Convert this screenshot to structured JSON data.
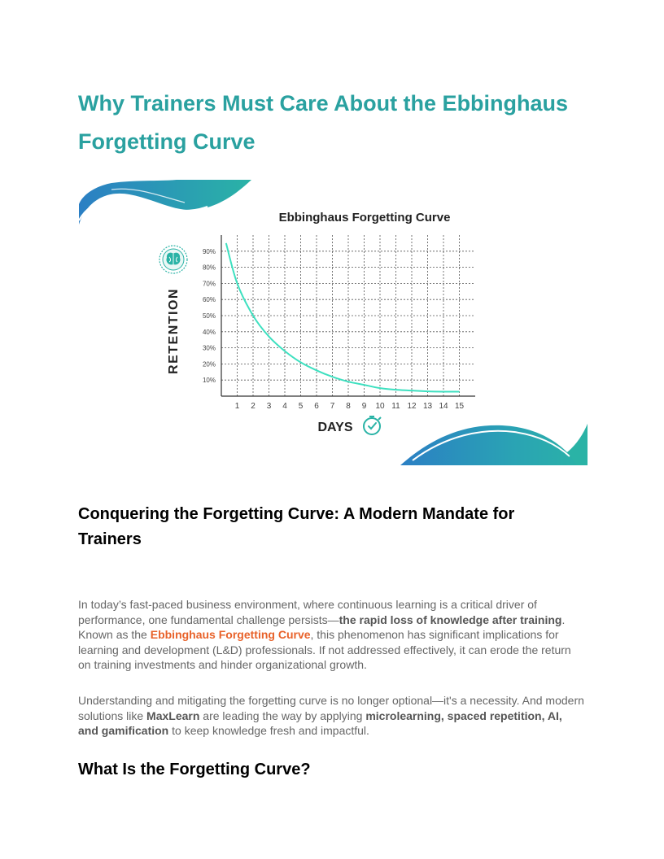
{
  "document": {
    "title_lines": [
      "Why Trainers Must Care About the Ebbinghaus",
      "Forgetting Curve"
    ],
    "colors": {
      "title": "#2aa1a0",
      "highlight": "#e8622a",
      "curve": "#3ee0c0",
      "swoosh_blue": "#2b7fc4",
      "swoosh_teal": "#2ab3a6"
    }
  },
  "figure": {
    "brain_icon": "brain-icon",
    "clock_icon": "clock-check-icon"
  },
  "chart_data": {
    "type": "line",
    "title": "Ebbinghaus Forgetting Curve",
    "xlabel": "DAYS",
    "ylabel": "RETENTION",
    "x_ticks": [
      "1",
      "2",
      "3",
      "4",
      "5",
      "6",
      "7",
      "8",
      "9",
      "10",
      "11",
      "12",
      "13",
      "14",
      "15"
    ],
    "y_ticks": [
      "10%",
      "20%",
      "30%",
      "40%",
      "50%",
      "60%",
      "70%",
      "80%",
      "90%"
    ],
    "xlim": [
      0,
      16
    ],
    "ylim": [
      0,
      100
    ],
    "grid": true,
    "series": [
      {
        "x": [
          0.3,
          1,
          2,
          3,
          4,
          5,
          6,
          7,
          8,
          9,
          10,
          11,
          12,
          13,
          14,
          15
        ],
        "y": [
          95,
          70,
          50,
          37,
          28,
          21,
          16,
          12,
          9,
          7,
          5,
          4,
          3.5,
          3,
          2.8,
          2.8
        ]
      }
    ]
  },
  "section": {
    "heading_lines": [
      "Conquering the Forgetting Curve: A Modern Mandate for",
      "Trainers"
    ]
  },
  "p1": {
    "l1": "In today’s fast-paced business environment, where continuous learning is a critical driver of",
    "l2_a": "performance, one fundamental challenge persists—",
    "l2_b": "the rapid loss of knowledge after training",
    "l2_c": ".",
    "l3_a": "Known as the ",
    "l3_b": "Ebbinghaus Forgetting Curve",
    "l3_c": ", this phenomenon has significant implications for",
    "l4": "learning and development (L&D) professionals. If not addressed effectively, it can erode the return",
    "l5": "on training investments and hinder organizational growth."
  },
  "p2": {
    "l1": "Understanding and mitigating the forgetting curve is no longer optional—it's a necessity. And modern",
    "l2_a": "solutions like ",
    "l2_b": "MaxLearn",
    "l2_c": " are leading the way by applying ",
    "l2_d": "microlearning, spaced repetition, AI,",
    "l3_a": "and gamification",
    "l3_b": " to keep knowledge fresh and impactful."
  },
  "subsection": {
    "heading": "What Is the Forgetting Curve?"
  }
}
